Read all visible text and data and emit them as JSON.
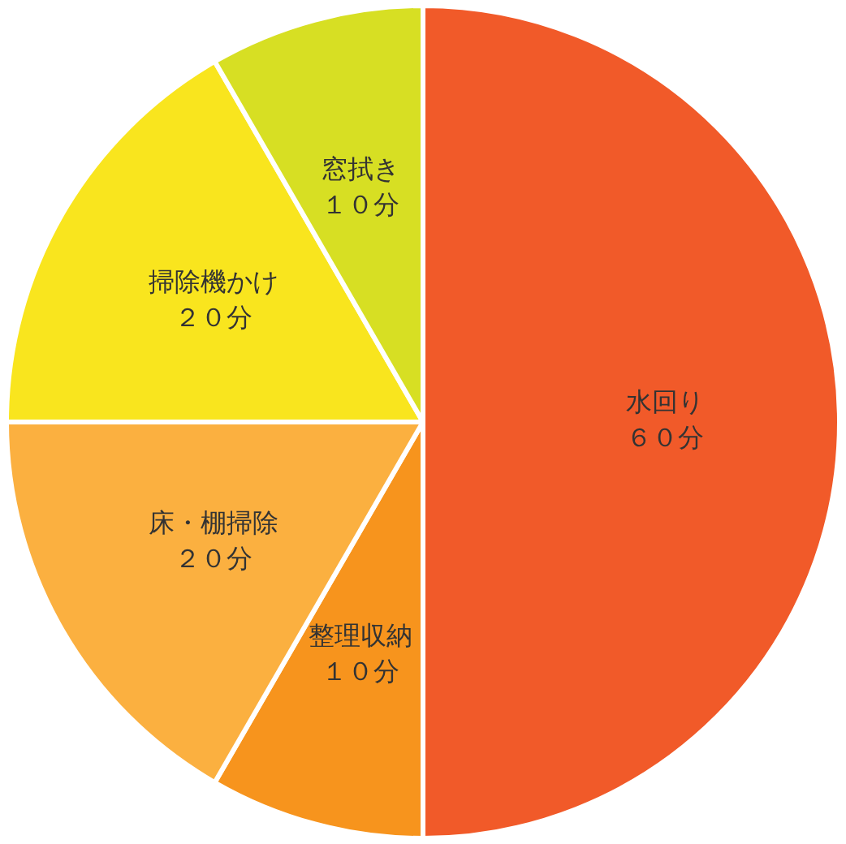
{
  "chart_data": {
    "type": "pie",
    "categories": [
      "水回り",
      "整理収納",
      "床・棚掃除",
      "掃除機かけ",
      "窓拭き"
    ],
    "values": [
      60,
      10,
      20,
      20,
      10
    ],
    "value_labels": [
      "６０分",
      "１０分",
      "２０分",
      "２０分",
      "１０分"
    ],
    "colors": [
      "#f15a29",
      "#f7941d",
      "#fbb040",
      "#f9e51e",
      "#d7df23"
    ],
    "legend": false
  }
}
